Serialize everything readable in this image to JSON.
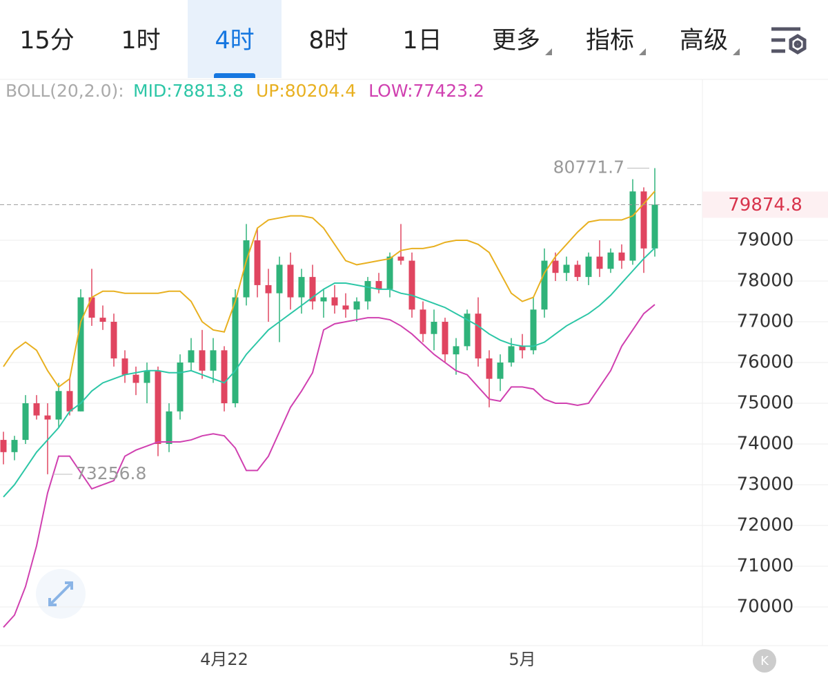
{
  "tabs": [
    "15分",
    "1时",
    "4时",
    "8时",
    "1日",
    "更多",
    "指标",
    "高级"
  ],
  "selected_tab": 2,
  "chart_data": {
    "type": "candlestick",
    "indicator": "BOLL(20,2.0):",
    "categories": [
      null,
      null,
      null,
      null,
      null,
      null,
      null,
      null,
      null,
      null,
      null,
      null,
      null,
      null,
      null,
      null,
      null,
      null,
      null,
      null,
      "4月22",
      null,
      null,
      null,
      null,
      null,
      null,
      null,
      null,
      null,
      null,
      null,
      null,
      null,
      null,
      null,
      null,
      null,
      null,
      null,
      null,
      null,
      null,
      null,
      null,
      null,
      null,
      "5月",
      null,
      null,
      null,
      null,
      null,
      null,
      null,
      null,
      null,
      null,
      null,
      null
    ],
    "open": [
      74100,
      73800,
      74100,
      75000,
      74700,
      74600,
      75300,
      74800,
      77600,
      77100,
      77000,
      76100,
      75700,
      75500,
      75800,
      74000,
      74800,
      76000,
      76300,
      75800,
      76300,
      75000,
      77600,
      79000,
      77900,
      77700,
      78400,
      77600,
      78100,
      77500,
      77600,
      77400,
      77300,
      77500,
      78000,
      77800,
      78600,
      78500,
      77300,
      76700,
      77000,
      76200,
      76400,
      77200,
      76100,
      75600,
      76000,
      76400,
      76300,
      77300,
      78500,
      78200,
      78400,
      78100,
      78600,
      78300,
      78700,
      78500,
      80200,
      78800
    ],
    "high": [
      74300,
      74200,
      75200,
      75200,
      75000,
      75500,
      75600,
      77800,
      78300,
      77400,
      77200,
      76300,
      75900,
      76000,
      75900,
      75000,
      76200,
      76600,
      76800,
      76600,
      76400,
      77800,
      79400,
      79300,
      78300,
      78600,
      78700,
      78300,
      78400,
      77800,
      77900,
      77700,
      77600,
      78100,
      78200,
      78700,
      79400,
      78700,
      77500,
      77300,
      77100,
      76600,
      77300,
      77600,
      76300,
      76200,
      76600,
      76700,
      77600,
      78800,
      78700,
      78600,
      78500,
      78700,
      79000,
      78800,
      78900,
      80500,
      80300,
      80771.7
    ],
    "low": [
      73500,
      73600,
      74000,
      74600,
      73256.8,
      74400,
      74700,
      74800,
      76900,
      76800,
      75900,
      75500,
      75200,
      75000,
      73700,
      73800,
      74600,
      75800,
      75600,
      75500,
      74800,
      74900,
      77400,
      77600,
      77000,
      76500,
      77300,
      77200,
      77300,
      77100,
      77200,
      77100,
      77000,
      77300,
      77700,
      77600,
      78400,
      77100,
      76500,
      76300,
      76000,
      75700,
      76300,
      75900,
      74900,
      75300,
      75900,
      76100,
      76200,
      77100,
      78000,
      78000,
      78000,
      77900,
      78100,
      78200,
      78300,
      78400,
      78200,
      78600
    ],
    "close": [
      73800,
      74100,
      75000,
      74700,
      74600,
      75300,
      74800,
      77600,
      77100,
      77000,
      76100,
      75700,
      75500,
      75800,
      74000,
      74800,
      76000,
      76300,
      75800,
      76300,
      75000,
      77600,
      79000,
      77900,
      77700,
      78400,
      77600,
      78100,
      77500,
      77600,
      77400,
      77300,
      77500,
      78000,
      77800,
      78600,
      78500,
      77300,
      76700,
      77000,
      76200,
      76400,
      77200,
      76100,
      75600,
      76000,
      76400,
      76300,
      77300,
      78500,
      78200,
      78400,
      78100,
      78600,
      78300,
      78700,
      78500,
      80200,
      78800,
      79874.8
    ],
    "up_color": "#2fb37a",
    "down_color": "#e04560",
    "series": [
      {
        "name": "MID:",
        "color": "#2cc6a6",
        "values": [
          72700,
          73000,
          73400,
          73800,
          74100,
          74400,
          74800,
          75000,
          75300,
          75500,
          75600,
          75700,
          75750,
          75800,
          75800,
          75750,
          75750,
          75800,
          75700,
          75600,
          75500,
          75800,
          76200,
          76500,
          76800,
          77000,
          77200,
          77400,
          77600,
          77800,
          77950,
          77950,
          77900,
          77850,
          77800,
          77800,
          77700,
          77650,
          77550,
          77450,
          77350,
          77200,
          77050,
          76900,
          76700,
          76550,
          76450,
          76400,
          76400,
          76500,
          76700,
          76900,
          77050,
          77200,
          77400,
          77650,
          77950,
          78250,
          78550,
          78813.8
        ]
      },
      {
        "name": "UP:",
        "color": "#e8b020",
        "values": [
          75900,
          76300,
          76500,
          76300,
          75800,
          75400,
          75600,
          77000,
          77600,
          77750,
          77750,
          77700,
          77700,
          77700,
          77700,
          77750,
          77750,
          77500,
          77000,
          76800,
          76750,
          77500,
          78500,
          79300,
          79500,
          79550,
          79600,
          79600,
          79550,
          79300,
          78900,
          78500,
          78400,
          78450,
          78500,
          78550,
          78750,
          78800,
          78800,
          78850,
          78950,
          79000,
          79000,
          78900,
          78700,
          78200,
          77700,
          77500,
          77600,
          78200,
          78600,
          78900,
          79200,
          79450,
          79500,
          79500,
          79500,
          79600,
          79900,
          80204.4
        ]
      },
      {
        "name": "LOW:",
        "color": "#d040b0",
        "values": [
          69500,
          69800,
          70500,
          71500,
          72800,
          73700,
          73700,
          73300,
          72900,
          73000,
          73100,
          73700,
          73850,
          73950,
          74050,
          74050,
          74050,
          74100,
          74200,
          74250,
          74200,
          73900,
          73350,
          73350,
          73700,
          74300,
          74900,
          75300,
          75750,
          76800,
          76950,
          77000,
          77050,
          77100,
          77100,
          77050,
          76900,
          76700,
          76450,
          76200,
          76000,
          75800,
          75700,
          75400,
          75100,
          75050,
          75400,
          75400,
          75350,
          75100,
          75000,
          75000,
          74950,
          75000,
          75400,
          75800,
          76400,
          76800,
          77200,
          77423.2
        ]
      }
    ],
    "ylim": [
      69050,
      82950
    ],
    "yticks": [
      70000,
      71000,
      72000,
      73000,
      74000,
      75000,
      76000,
      77000,
      78000,
      79000
    ],
    "grid": true
  }
}
